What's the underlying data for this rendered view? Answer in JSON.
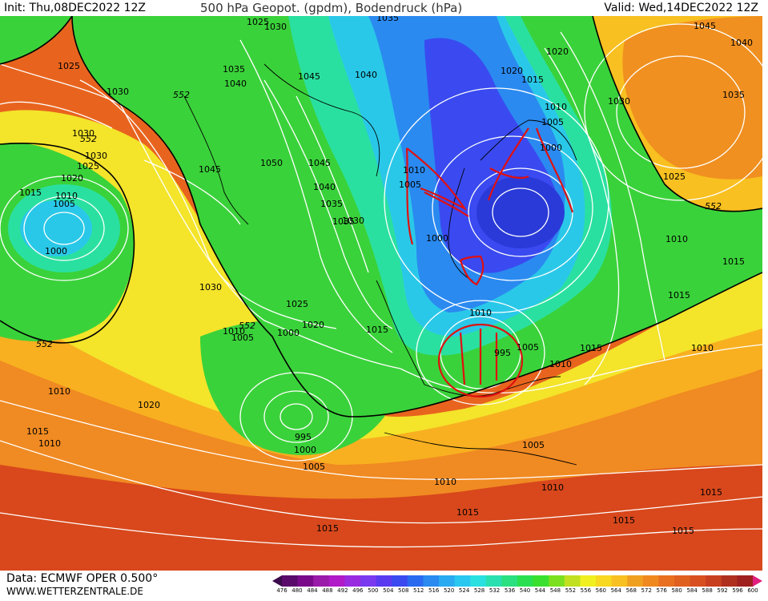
{
  "header": {
    "init": "Init: Thu,08DEC2022 12Z",
    "title": "500 hPa Geopot. (gpdm), Bodendruck (hPa)",
    "valid": "Valid: Wed,14DEC2022 12Z"
  },
  "footer": {
    "data_source": "Data: ECMWF OPER 0.500°",
    "website": "WWW.WETTERZENTRALE.DE"
  },
  "colorbar": {
    "ticks": [
      "476",
      "480",
      "484",
      "488",
      "492",
      "496",
      "500",
      "504",
      "508",
      "512",
      "516",
      "520",
      "524",
      "528",
      "532",
      "536",
      "540",
      "544",
      "548",
      "552",
      "556",
      "560",
      "564",
      "568",
      "572",
      "576",
      "580",
      "584",
      "588",
      "592",
      "596",
      "600"
    ],
    "colors": [
      "#3a0a4a",
      "#5a0a6a",
      "#7a0a8a",
      "#9a1aaa",
      "#b01ac8",
      "#9a2ae0",
      "#7a3af0",
      "#5a3af0",
      "#3a4af0",
      "#2a6af0",
      "#2a8af0",
      "#2aaaf0",
      "#2ac8f0",
      "#2ae0e0",
      "#2ae0b0",
      "#2ae080",
      "#2ae050",
      "#3ae030",
      "#7ae020",
      "#c0e020",
      "#f0f020",
      "#f8d820",
      "#f8c020",
      "#f0a020",
      "#f08820",
      "#e87020",
      "#e06020",
      "#d85020",
      "#c84020",
      "#b03020",
      "#a02020",
      "#e02080"
    ]
  },
  "pressure_labels": [
    {
      "text": "1025"
    },
    {
      "text": "1030"
    },
    {
      "text": "1035"
    },
    {
      "text": "1040"
    },
    {
      "text": "1025"
    },
    {
      "text": "1030"
    },
    {
      "text": "1030"
    },
    {
      "text": "1025"
    },
    {
      "text": "1020"
    },
    {
      "text": "1015"
    },
    {
      "text": "1010"
    },
    {
      "text": "1005"
    },
    {
      "text": "1000"
    },
    {
      "text": "1045"
    },
    {
      "text": "1040"
    },
    {
      "text": "1035"
    },
    {
      "text": "1030"
    },
    {
      "text": "1050"
    },
    {
      "text": "1045"
    },
    {
      "text": "1040"
    },
    {
      "text": "1045"
    },
    {
      "text": "1035"
    },
    {
      "text": "1020"
    },
    {
      "text": "1020"
    },
    {
      "text": "1015"
    },
    {
      "text": "1010"
    },
    {
      "text": "1005"
    },
    {
      "text": "1000"
    },
    {
      "text": "1010"
    },
    {
      "text": "1005"
    },
    {
      "text": "1000"
    },
    {
      "text": "1045"
    },
    {
      "text": "1040"
    },
    {
      "text": "1035"
    },
    {
      "text": "1030"
    },
    {
      "text": "1025"
    },
    {
      "text": "1010"
    },
    {
      "text": "1015"
    },
    {
      "text": "1015"
    },
    {
      "text": "1010"
    },
    {
      "text": "1030"
    },
    {
      "text": "1025"
    },
    {
      "text": "1020"
    },
    {
      "text": "1015"
    },
    {
      "text": "1010"
    },
    {
      "text": "1005"
    },
    {
      "text": "1000"
    },
    {
      "text": "995"
    },
    {
      "text": "1005"
    },
    {
      "text": "1010"
    },
    {
      "text": "1015"
    },
    {
      "text": "1010"
    },
    {
      "text": "1020"
    },
    {
      "text": "1015"
    },
    {
      "text": "1010"
    },
    {
      "text": "1005"
    },
    {
      "text": "995"
    },
    {
      "text": "1000"
    },
    {
      "text": "1005"
    },
    {
      "text": "1010"
    },
    {
      "text": "1010"
    },
    {
      "text": "1015"
    },
    {
      "text": "1015"
    },
    {
      "text": "1015"
    },
    {
      "text": "1015"
    },
    {
      "text": "1015"
    },
    {
      "text": "1010"
    },
    {
      "text": "1030"
    },
    {
      "text": "1035"
    }
  ],
  "geopotential_labels": [
    {
      "text": "552"
    },
    {
      "text": "552"
    },
    {
      "text": "552"
    },
    {
      "text": "552"
    },
    {
      "text": "552"
    }
  ]
}
